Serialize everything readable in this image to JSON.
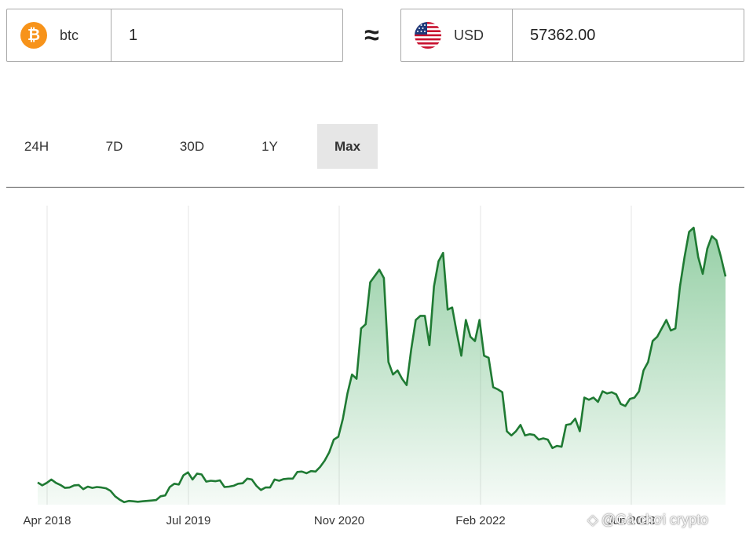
{
  "converter": {
    "from": {
      "icon": "bitcoin-icon",
      "symbol": "₿",
      "code": "btc",
      "value": "1"
    },
    "approx_symbol": "≈",
    "to": {
      "icon": "us-flag-icon",
      "code": "USD",
      "value": "57362.00"
    }
  },
  "range_tabs": [
    {
      "label": "24H",
      "active": false
    },
    {
      "label": "7D",
      "active": false
    },
    {
      "label": "30D",
      "active": false
    },
    {
      "label": "1Y",
      "active": false
    },
    {
      "label": "Max",
      "active": true
    }
  ],
  "watermark": {
    "text": "@Gà chơi crypto",
    "icon": "diamond-icon"
  },
  "colors": {
    "line": "#1f7a33",
    "fill": "#3fa85c",
    "grid": "#e4e4e4"
  },
  "chart_data": {
    "type": "area",
    "title": "",
    "xlabel": "",
    "ylabel": "",
    "x_ticks": [
      "Apr 2018",
      "Jul 2019",
      "Nov 2020",
      "Feb 2022",
      "Jun 2023"
    ],
    "grid": "vertical",
    "legend": "none",
    "start": "2018-03",
    "end": "2024-04",
    "ylim": [
      3000,
      75000
    ],
    "y": [
      8300,
      7600,
      8200,
      9000,
      8200,
      7700,
      7000,
      7100,
      7600,
      7700,
      6700,
      7300,
      7000,
      7200,
      7100,
      6900,
      6300,
      5000,
      4200,
      3600,
      3900,
      3800,
      3700,
      3800,
      3900,
      4000,
      4100,
      5000,
      5200,
      7200,
      8000,
      7800,
      10000,
      10700,
      9000,
      10400,
      10200,
      8500,
      8700,
      8600,
      8800,
      7200,
      7300,
      7500,
      8000,
      8100,
      9200,
      9000,
      7500,
      6500,
      7100,
      7100,
      9000,
      8700,
      9100,
      9200,
      9200,
      10800,
      10900,
      10500,
      11000,
      10900,
      12000,
      13500,
      15500,
      18500,
      19200,
      23500,
      29500,
      34000,
      33000,
      45000,
      46000,
      56000,
      57500,
      59000,
      57000,
      37000,
      34000,
      35000,
      33000,
      31500,
      40000,
      47000,
      48000,
      48000,
      41000,
      55000,
      61000,
      63000,
      49500,
      50000,
      44000,
      38500,
      47000,
      43000,
      42000,
      47000,
      38500,
      38000,
      31000,
      30500,
      29800,
      20500,
      19500,
      20500,
      22000,
      19500,
      19800,
      19600,
      18500,
      18800,
      18500,
      16500,
      17000,
      16800,
      22000,
      22200,
      23500,
      20500,
      28500,
      28000,
      28500,
      27500,
      30000,
      29500,
      29800,
      29300,
      27000,
      26500,
      28200,
      28500,
      30000,
      35000,
      37000,
      42000,
      43000,
      45000,
      47000,
      44500,
      45000,
      55000,
      62000,
      68000,
      69000,
      62000,
      58000,
      64000,
      67000,
      66000,
      62000,
      57362
    ]
  }
}
